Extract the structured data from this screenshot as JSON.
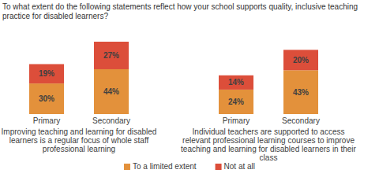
{
  "chart_data": {
    "type": "bar",
    "title": "To what extent do the following statements reflect how your school supports quality, inclusive teaching practice for disabled learners?",
    "categories": [
      "Primary",
      "Secondary",
      "Primary",
      "Secondary"
    ],
    "group_labels": [
      "Improving teaching and learning for disabled learners is a regular focus of whole staff professional learning",
      "Individual teachers are supported to access relevant professional learning courses to improve teaching and learning for disabled learners in their class"
    ],
    "series": [
      {
        "name": "To a limited extent",
        "color": "#e3913b",
        "values": [
          30,
          44,
          24,
          43
        ],
        "value_labels": [
          "30%",
          "44%",
          "24%",
          "43%"
        ]
      },
      {
        "name": "Not at all",
        "color": "#dc4e3a",
        "values": [
          19,
          27,
          14,
          20
        ],
        "value_labels": [
          "19%",
          "27%",
          "14%",
          "20%"
        ]
      }
    ],
    "stacked": true,
    "data_labels": true,
    "tick_labels": "x",
    "legend": "bottom"
  }
}
